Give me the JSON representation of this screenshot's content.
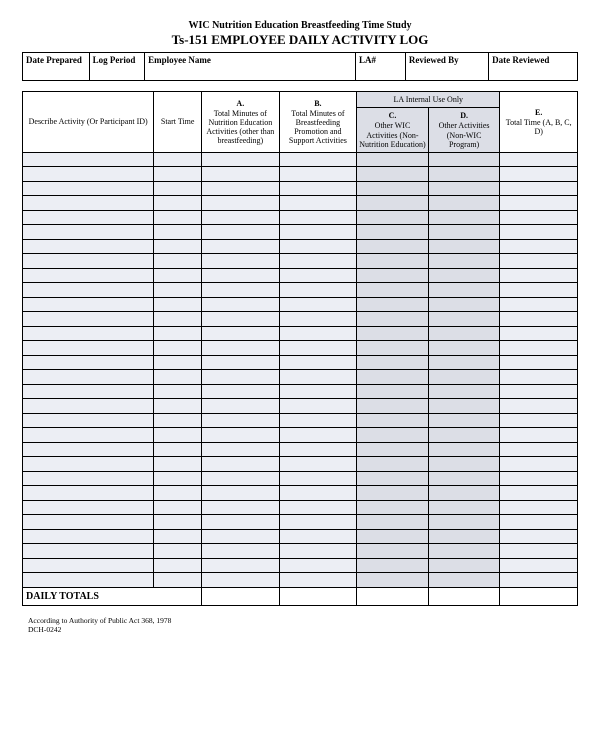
{
  "header": {
    "subtitle": "WIC Nutrition Education Breastfeeding Time Study",
    "title": "Ts-151 EMPLOYEE DAILY ACTIVITY LOG"
  },
  "info_labels": {
    "date_prepared": "Date Prepared",
    "log_period": "Log Period",
    "employee_name": "Employee Name",
    "la_number": "LA#",
    "reviewed_by": "Reviewed By",
    "date_reviewed": "Date Reviewed"
  },
  "columns": {
    "describe": "Describe Activity (Or Participant ID)",
    "start": "Start Time",
    "a_lead": "A.",
    "a": "Total Minutes of Nutrition Education Activities (other than breastfeeding)",
    "b_lead": "B.",
    "b": "Total Minutes of Breastfeeding Promotion and Support Activities",
    "la_banner": "LA Internal Use Only",
    "c_lead": "C.",
    "c": "Other WIC Activities (Non-Nutrition Education)",
    "d_lead": "D.",
    "d": "Other Activities (Non-WIC Program)",
    "e_lead": "E.",
    "e": "Total Time (A, B, C, D)"
  },
  "table": {
    "row_count": 30,
    "totals_label": "DAILY TOTALS",
    "col_widths_pct": [
      22,
      8,
      13,
      13,
      12,
      12,
      13
    ],
    "row_bg": "#eceef4",
    "shade_bg": "#dcdee6",
    "border_color": "#000000"
  },
  "footer": {
    "line1": "According to Authority of Public Act 368, 1978",
    "line2": "DCH-0242"
  }
}
